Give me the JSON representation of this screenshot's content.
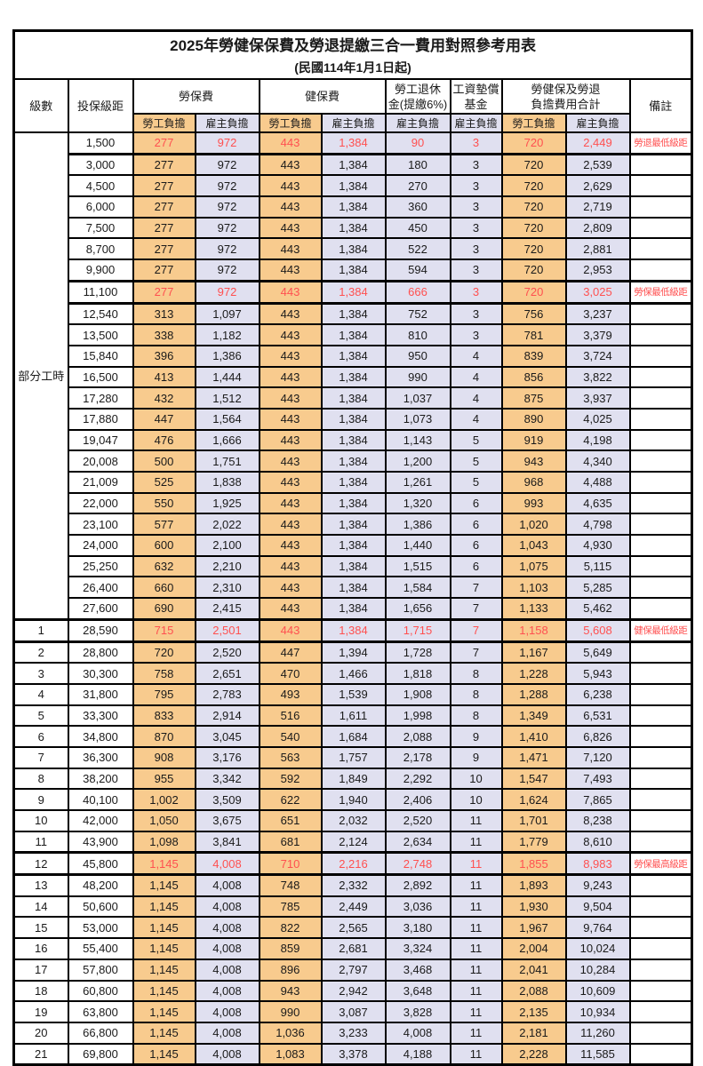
{
  "page": {
    "title": "2025年勞健保保費及勞退提繳三合一費用對照參考用表",
    "subtitle": "(民國114年1月1日起)"
  },
  "colors": {
    "employee_bg": "#F8CB8E",
    "employer_bg": "#E0E0F0",
    "highlight_text": "#FF5050",
    "border": "#000000"
  },
  "header": {
    "level": "級數",
    "bracket": "投保級距",
    "labor_insurance": "勞保費",
    "health_insurance": "健保費",
    "pension_line1": "勞工退休",
    "pension_line2": "金(提繳6%)",
    "wage_fund_line1": "工資墊償",
    "wage_fund_line2": "基金",
    "total_line1": "勞健保及勞退",
    "total_line2": "負擔費用合計",
    "remark": "備註",
    "employee_label": "勞工負擔",
    "employer_label": "雇主負擔"
  },
  "table": {
    "part_time_label": "部分工時",
    "part_time_row_count": 23,
    "value_columns": [
      "勞保費勞工負擔",
      "勞保費雇主負擔",
      "健保費勞工負擔",
      "健保費雇主負擔",
      "勞工退休金雇主負擔",
      "工資墊償基金雇主負擔",
      "合計勞工負擔",
      "合計雇主負擔"
    ],
    "rows": [
      {
        "level": "",
        "bracket": "1,500",
        "v": [
          "277",
          "972",
          "443",
          "1,384",
          "90",
          "3",
          "720",
          "2,449"
        ],
        "note": "勞退最低級距",
        "hl": true
      },
      {
        "level": "",
        "bracket": "3,000",
        "v": [
          "277",
          "972",
          "443",
          "1,384",
          "180",
          "3",
          "720",
          "2,539"
        ],
        "note": "",
        "hl": false
      },
      {
        "level": "",
        "bracket": "4,500",
        "v": [
          "277",
          "972",
          "443",
          "1,384",
          "270",
          "3",
          "720",
          "2,629"
        ],
        "note": "",
        "hl": false
      },
      {
        "level": "",
        "bracket": "6,000",
        "v": [
          "277",
          "972",
          "443",
          "1,384",
          "360",
          "3",
          "720",
          "2,719"
        ],
        "note": "",
        "hl": false
      },
      {
        "level": "",
        "bracket": "7,500",
        "v": [
          "277",
          "972",
          "443",
          "1,384",
          "450",
          "3",
          "720",
          "2,809"
        ],
        "note": "",
        "hl": false
      },
      {
        "level": "",
        "bracket": "8,700",
        "v": [
          "277",
          "972",
          "443",
          "1,384",
          "522",
          "3",
          "720",
          "2,881"
        ],
        "note": "",
        "hl": false
      },
      {
        "level": "",
        "bracket": "9,900",
        "v": [
          "277",
          "972",
          "443",
          "1,384",
          "594",
          "3",
          "720",
          "2,953"
        ],
        "note": "",
        "hl": false
      },
      {
        "level": "",
        "bracket": "11,100",
        "v": [
          "277",
          "972",
          "443",
          "1,384",
          "666",
          "3",
          "720",
          "3,025"
        ],
        "note": "勞保最低級距",
        "hl": true
      },
      {
        "level": "",
        "bracket": "12,540",
        "v": [
          "313",
          "1,097",
          "443",
          "1,384",
          "752",
          "3",
          "756",
          "3,237"
        ],
        "note": "",
        "hl": false
      },
      {
        "level": "",
        "bracket": "13,500",
        "v": [
          "338",
          "1,182",
          "443",
          "1,384",
          "810",
          "3",
          "781",
          "3,379"
        ],
        "note": "",
        "hl": false
      },
      {
        "level": "",
        "bracket": "15,840",
        "v": [
          "396",
          "1,386",
          "443",
          "1,384",
          "950",
          "4",
          "839",
          "3,724"
        ],
        "note": "",
        "hl": false
      },
      {
        "level": "",
        "bracket": "16,500",
        "v": [
          "413",
          "1,444",
          "443",
          "1,384",
          "990",
          "4",
          "856",
          "3,822"
        ],
        "note": "",
        "hl": false
      },
      {
        "level": "",
        "bracket": "17,280",
        "v": [
          "432",
          "1,512",
          "443",
          "1,384",
          "1,037",
          "4",
          "875",
          "3,937"
        ],
        "note": "",
        "hl": false
      },
      {
        "level": "",
        "bracket": "17,880",
        "v": [
          "447",
          "1,564",
          "443",
          "1,384",
          "1,073",
          "4",
          "890",
          "4,025"
        ],
        "note": "",
        "hl": false
      },
      {
        "level": "",
        "bracket": "19,047",
        "v": [
          "476",
          "1,666",
          "443",
          "1,384",
          "1,143",
          "5",
          "919",
          "4,198"
        ],
        "note": "",
        "hl": false
      },
      {
        "level": "",
        "bracket": "20,008",
        "v": [
          "500",
          "1,751",
          "443",
          "1,384",
          "1,200",
          "5",
          "943",
          "4,340"
        ],
        "note": "",
        "hl": false
      },
      {
        "level": "",
        "bracket": "21,009",
        "v": [
          "525",
          "1,838",
          "443",
          "1,384",
          "1,261",
          "5",
          "968",
          "4,488"
        ],
        "note": "",
        "hl": false
      },
      {
        "level": "",
        "bracket": "22,000",
        "v": [
          "550",
          "1,925",
          "443",
          "1,384",
          "1,320",
          "6",
          "993",
          "4,635"
        ],
        "note": "",
        "hl": false
      },
      {
        "level": "",
        "bracket": "23,100",
        "v": [
          "577",
          "2,022",
          "443",
          "1,384",
          "1,386",
          "6",
          "1,020",
          "4,798"
        ],
        "note": "",
        "hl": false
      },
      {
        "level": "",
        "bracket": "24,000",
        "v": [
          "600",
          "2,100",
          "443",
          "1,384",
          "1,440",
          "6",
          "1,043",
          "4,930"
        ],
        "note": "",
        "hl": false
      },
      {
        "level": "",
        "bracket": "25,250",
        "v": [
          "632",
          "2,210",
          "443",
          "1,384",
          "1,515",
          "6",
          "1,075",
          "5,115"
        ],
        "note": "",
        "hl": false
      },
      {
        "level": "",
        "bracket": "26,400",
        "v": [
          "660",
          "2,310",
          "443",
          "1,384",
          "1,584",
          "7",
          "1,103",
          "5,285"
        ],
        "note": "",
        "hl": false
      },
      {
        "level": "",
        "bracket": "27,600",
        "v": [
          "690",
          "2,415",
          "443",
          "1,384",
          "1,656",
          "7",
          "1,133",
          "5,462"
        ],
        "note": "",
        "hl": false
      },
      {
        "level": "1",
        "bracket": "28,590",
        "v": [
          "715",
          "2,501",
          "443",
          "1,384",
          "1,715",
          "7",
          "1,158",
          "5,608"
        ],
        "note": "健保最低級距",
        "hl": true
      },
      {
        "level": "2",
        "bracket": "28,800",
        "v": [
          "720",
          "2,520",
          "447",
          "1,394",
          "1,728",
          "7",
          "1,167",
          "5,649"
        ],
        "note": "",
        "hl": false
      },
      {
        "level": "3",
        "bracket": "30,300",
        "v": [
          "758",
          "2,651",
          "470",
          "1,466",
          "1,818",
          "8",
          "1,228",
          "5,943"
        ],
        "note": "",
        "hl": false
      },
      {
        "level": "4",
        "bracket": "31,800",
        "v": [
          "795",
          "2,783",
          "493",
          "1,539",
          "1,908",
          "8",
          "1,288",
          "6,238"
        ],
        "note": "",
        "hl": false
      },
      {
        "level": "5",
        "bracket": "33,300",
        "v": [
          "833",
          "2,914",
          "516",
          "1,611",
          "1,998",
          "8",
          "1,349",
          "6,531"
        ],
        "note": "",
        "hl": false
      },
      {
        "level": "6",
        "bracket": "34,800",
        "v": [
          "870",
          "3,045",
          "540",
          "1,684",
          "2,088",
          "9",
          "1,410",
          "6,826"
        ],
        "note": "",
        "hl": false
      },
      {
        "level": "7",
        "bracket": "36,300",
        "v": [
          "908",
          "3,176",
          "563",
          "1,757",
          "2,178",
          "9",
          "1,471",
          "7,120"
        ],
        "note": "",
        "hl": false
      },
      {
        "level": "8",
        "bracket": "38,200",
        "v": [
          "955",
          "3,342",
          "592",
          "1,849",
          "2,292",
          "10",
          "1,547",
          "7,493"
        ],
        "note": "",
        "hl": false
      },
      {
        "level": "9",
        "bracket": "40,100",
        "v": [
          "1,002",
          "3,509",
          "622",
          "1,940",
          "2,406",
          "10",
          "1,624",
          "7,865"
        ],
        "note": "",
        "hl": false
      },
      {
        "level": "10",
        "bracket": "42,000",
        "v": [
          "1,050",
          "3,675",
          "651",
          "2,032",
          "2,520",
          "11",
          "1,701",
          "8,238"
        ],
        "note": "",
        "hl": false
      },
      {
        "level": "11",
        "bracket": "43,900",
        "v": [
          "1,098",
          "3,841",
          "681",
          "2,124",
          "2,634",
          "11",
          "1,779",
          "8,610"
        ],
        "note": "",
        "hl": false
      },
      {
        "level": "12",
        "bracket": "45,800",
        "v": [
          "1,145",
          "4,008",
          "710",
          "2,216",
          "2,748",
          "11",
          "1,855",
          "8,983"
        ],
        "note": "勞保最高級距",
        "hl": true
      },
      {
        "level": "13",
        "bracket": "48,200",
        "v": [
          "1,145",
          "4,008",
          "748",
          "2,332",
          "2,892",
          "11",
          "1,893",
          "9,243"
        ],
        "note": "",
        "hl": false
      },
      {
        "level": "14",
        "bracket": "50,600",
        "v": [
          "1,145",
          "4,008",
          "785",
          "2,449",
          "3,036",
          "11",
          "1,930",
          "9,504"
        ],
        "note": "",
        "hl": false
      },
      {
        "level": "15",
        "bracket": "53,000",
        "v": [
          "1,145",
          "4,008",
          "822",
          "2,565",
          "3,180",
          "11",
          "1,967",
          "9,764"
        ],
        "note": "",
        "hl": false
      },
      {
        "level": "16",
        "bracket": "55,400",
        "v": [
          "1,145",
          "4,008",
          "859",
          "2,681",
          "3,324",
          "11",
          "2,004",
          "10,024"
        ],
        "note": "",
        "hl": false
      },
      {
        "level": "17",
        "bracket": "57,800",
        "v": [
          "1,145",
          "4,008",
          "896",
          "2,797",
          "3,468",
          "11",
          "2,041",
          "10,284"
        ],
        "note": "",
        "hl": false
      },
      {
        "level": "18",
        "bracket": "60,800",
        "v": [
          "1,145",
          "4,008",
          "943",
          "2,942",
          "3,648",
          "11",
          "2,088",
          "10,609"
        ],
        "note": "",
        "hl": false
      },
      {
        "level": "19",
        "bracket": "63,800",
        "v": [
          "1,145",
          "4,008",
          "990",
          "3,087",
          "3,828",
          "11",
          "2,135",
          "10,934"
        ],
        "note": "",
        "hl": false
      },
      {
        "level": "20",
        "bracket": "66,800",
        "v": [
          "1,145",
          "4,008",
          "1,036",
          "3,233",
          "4,008",
          "11",
          "2,181",
          "11,260"
        ],
        "note": "",
        "hl": false
      },
      {
        "level": "21",
        "bracket": "69,800",
        "v": [
          "1,145",
          "4,008",
          "1,083",
          "3,378",
          "4,188",
          "11",
          "2,228",
          "11,585"
        ],
        "note": "",
        "hl": false
      }
    ]
  }
}
